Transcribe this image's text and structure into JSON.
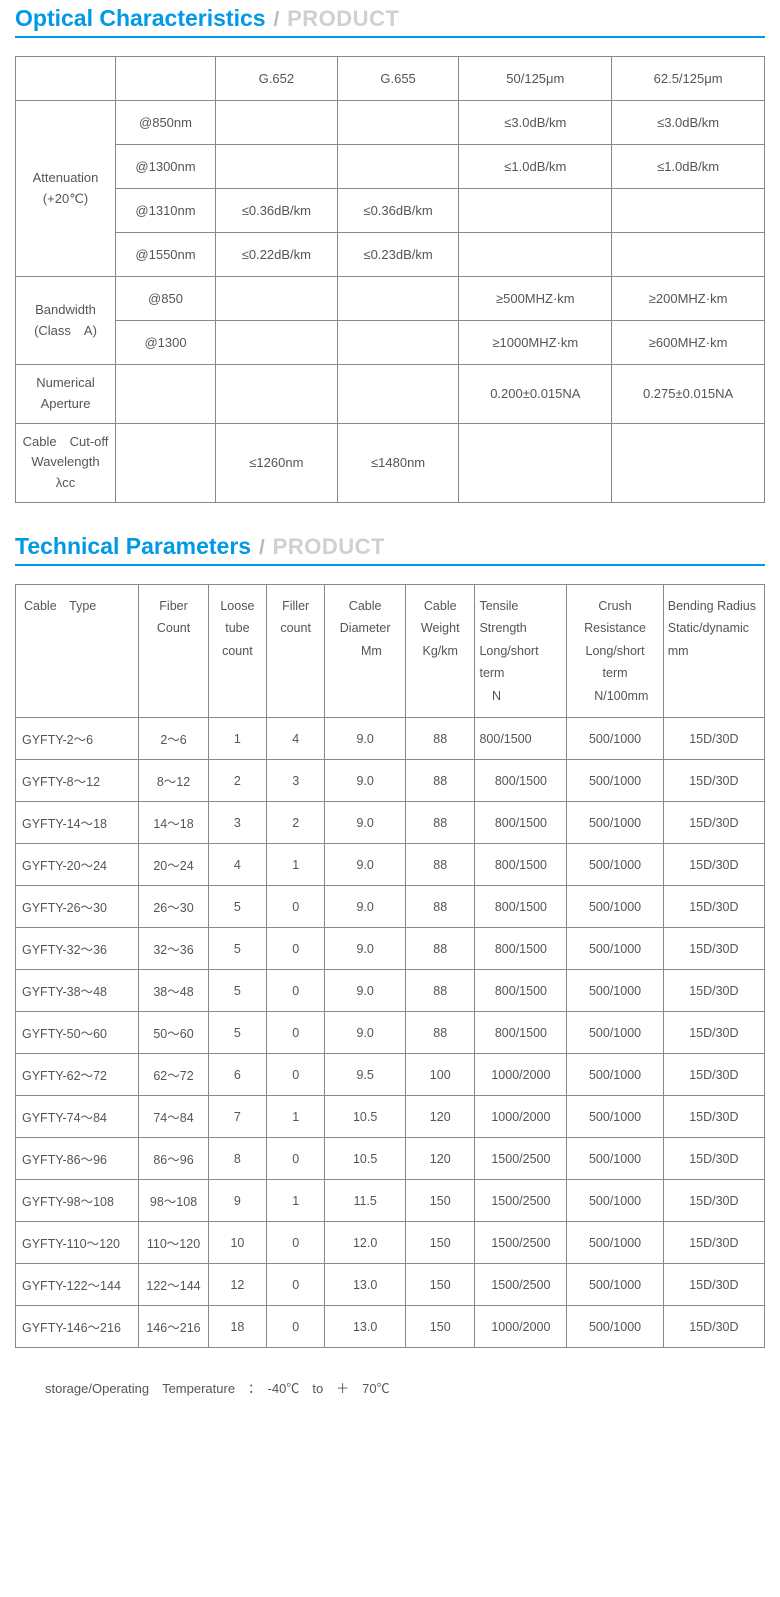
{
  "section1": {
    "title": "Optical Characteristics",
    "slash": "/",
    "subtitle": "PRODUCT",
    "divider_color": "#0099e5",
    "title_color": "#0099e5",
    "subtitle_color": "#d0d0d0"
  },
  "optical_table": {
    "type": "table",
    "columns": [
      "",
      "",
      "G.652",
      "G.655",
      "50/125μm",
      "62.5/125μm"
    ],
    "row_groups": [
      {
        "label": "Attenuation\n(+20℃)",
        "rowspan": 4,
        "rows": [
          {
            "sub": "@850nm",
            "cells": [
              "",
              "",
              "≤3.0dB/km",
              "≤3.0dB/km"
            ]
          },
          {
            "sub": "@1300nm",
            "cells": [
              "",
              "",
              "≤1.0dB/km",
              "≤1.0dB/km"
            ]
          },
          {
            "sub": "@1310nm",
            "cells": [
              "≤0.36dB/km",
              "≤0.36dB/km",
              "",
              ""
            ]
          },
          {
            "sub": "@1550nm",
            "cells": [
              "≤0.22dB/km",
              "≤0.23dB/km",
              "",
              ""
            ]
          }
        ]
      },
      {
        "label": "Bandwidth\n(Class　A)",
        "rowspan": 2,
        "rows": [
          {
            "sub": "@850",
            "cells": [
              "",
              "",
              "≥500MHZ·km",
              "≥200MHZ·km"
            ]
          },
          {
            "sub": "@1300",
            "cells": [
              "",
              "",
              "≥1000MHZ·km",
              "≥600MHZ·km"
            ]
          }
        ]
      },
      {
        "label": "Numerical\nAperture",
        "rowspan": 1,
        "rows": [
          {
            "sub": "",
            "cells": [
              "",
              "",
              "0.200±0.015NA",
              "0.275±0.015NA"
            ]
          }
        ]
      },
      {
        "label": "Cable　Cut-off\nWavelength\nλcc",
        "rowspan": 1,
        "rows": [
          {
            "sub": "",
            "cells": [
              "≤1260nm",
              "≤1480nm",
              "",
              ""
            ]
          }
        ]
      }
    ]
  },
  "section2": {
    "title": "Technical Parameters",
    "slash": "/",
    "subtitle": "PRODUCT"
  },
  "tech_table": {
    "type": "table",
    "columns": [
      "Cable　Type",
      "Fiber Count",
      "Loose tube count",
      "Filler count",
      "Cable Diameter\n　Mm",
      "Cable Weight\nKg/km",
      "Tensile Strength\nLong/short term\n　N",
      "Crush Resistance\nLong/short term\n　N/100mm",
      "Bending Radius\nStatic/dynamic\nmm"
    ],
    "rows": [
      [
        "GYFTY-2～6",
        "2～6",
        "1",
        "4",
        "9.0",
        "88",
        "800/1500",
        "500/1000",
        "15D/30D"
      ],
      [
        "GYFTY-8～12",
        "8～12",
        "2",
        "3",
        "9.0",
        "88",
        "800/1500",
        "500/1000",
        "15D/30D"
      ],
      [
        "GYFTY-14～18",
        "14～18",
        "3",
        "2",
        "9.0",
        "88",
        "800/1500",
        "500/1000",
        "15D/30D"
      ],
      [
        "GYFTY-20～24",
        "20～24",
        "4",
        "1",
        "9.0",
        "88",
        "800/1500",
        "500/1000",
        "15D/30D"
      ],
      [
        "GYFTY-26～30",
        "26～30",
        "5",
        "0",
        "9.0",
        "88",
        "800/1500",
        "500/1000",
        "15D/30D"
      ],
      [
        "GYFTY-32～36",
        "32～36",
        "5",
        "0",
        "9.0",
        "88",
        "800/1500",
        "500/1000",
        "15D/30D"
      ],
      [
        "GYFTY-38～48",
        "38～48",
        "5",
        "0",
        "9.0",
        "88",
        "800/1500",
        "500/1000",
        "15D/30D"
      ],
      [
        "GYFTY-50～60",
        "50～60",
        "5",
        "0",
        "9.0",
        "88",
        "800/1500",
        "500/1000",
        "15D/30D"
      ],
      [
        "GYFTY-62～72",
        "62～72",
        "6",
        "0",
        "9.5",
        "100",
        "1000/2000",
        "500/1000",
        "15D/30D"
      ],
      [
        "GYFTY-74～84",
        "74～84",
        "7",
        "1",
        "10.5",
        "120",
        "1000/2000",
        "500/1000",
        "15D/30D"
      ],
      [
        "GYFTY-86～96",
        "86～96",
        "8",
        "0",
        "10.5",
        "120",
        "1500/2500",
        "500/1000",
        "15D/30D"
      ],
      [
        "GYFTY-98～108",
        "98～108",
        "9",
        "1",
        "11.5",
        "150",
        "1500/2500",
        "500/1000",
        "15D/30D"
      ],
      [
        "GYFTY-110～120",
        "110～120",
        "10",
        "0",
        "12.0",
        "150",
        "1500/2500",
        "500/1000",
        "15D/30D"
      ],
      [
        "GYFTY-122～144",
        "122～144",
        "12",
        "0",
        "13.0",
        "150",
        "1500/2500",
        "500/1000",
        "15D/30D"
      ],
      [
        "GYFTY-146～216",
        "146～216",
        "18",
        "0",
        "13.0",
        "150",
        "1000/2000",
        "500/1000",
        "15D/30D"
      ]
    ]
  },
  "footnote": "storage/Operating　Temperature　：　-40℃　to　＋　70℃"
}
